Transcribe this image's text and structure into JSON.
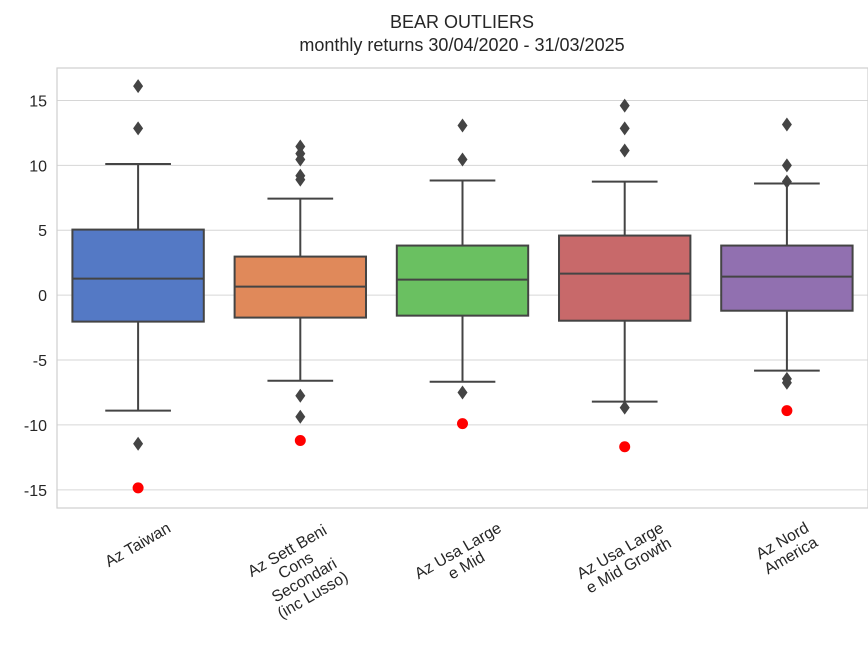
{
  "chart_data": {
    "type": "box",
    "title": "BEAR OUTLIERS",
    "subtitle": "monthly returns 30/04/2020 - 31/03/2025",
    "categories": [
      "Az Taiwan",
      "Az Sett Beni\nCons\nSecondari\n(inc Lusso)",
      "Az Usa Large\ne Mid",
      "Az Usa Large\ne Mid Growth",
      "Az Nord\nAmerica"
    ],
    "colors": [
      "#5479c5",
      "#e0895a",
      "#6ac061",
      "#c8696a",
      "#9170b0"
    ],
    "boxes": [
      {
        "whislo": -8.9,
        "q1": -2.04,
        "med": 1.27,
        "q3": 5.05,
        "whishi": 10.1,
        "fliers": [
          16.1,
          12.85,
          -11.45
        ]
      },
      {
        "whislo": -6.6,
        "q1": -1.73,
        "med": 0.66,
        "q3": 2.97,
        "whishi": 7.44,
        "fliers": [
          11.45,
          10.9,
          10.45,
          9.2,
          8.9,
          -7.75,
          -9.37
        ]
      },
      {
        "whislo": -6.67,
        "q1": -1.58,
        "med": 1.2,
        "q3": 3.82,
        "whishi": 8.83,
        "fliers": [
          13.07,
          10.45,
          -7.5
        ]
      },
      {
        "whislo": -8.2,
        "q1": -1.97,
        "med": 1.66,
        "q3": 4.59,
        "whishi": 8.75,
        "fliers": [
          14.6,
          12.85,
          11.14,
          -8.67
        ]
      },
      {
        "whislo": -5.82,
        "q1": -1.2,
        "med": 1.43,
        "q3": 3.82,
        "whishi": 8.6,
        "fliers": [
          13.15,
          10.0,
          8.75,
          -6.45,
          -6.75
        ]
      }
    ],
    "highlight": {
      "color": "#ff0000",
      "values": [
        -14.85,
        -11.2,
        -9.9,
        -11.68,
        -8.9
      ]
    },
    "ylim": [
      -16.4,
      17.5
    ],
    "yticks": [
      -15,
      -10,
      -5,
      0,
      5,
      10,
      15
    ],
    "grid": true
  }
}
